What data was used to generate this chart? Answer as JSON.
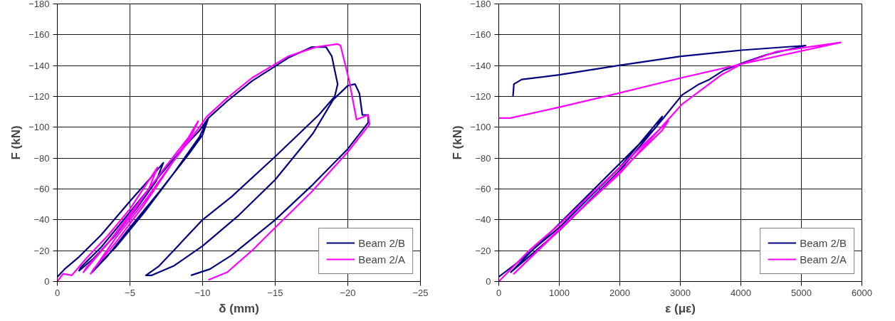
{
  "chart_data": [
    {
      "type": "line",
      "xlabel": "δ (mm)",
      "ylabel": "F (kN)",
      "xlim": [
        0,
        -25
      ],
      "ylim": [
        0,
        -180
      ],
      "xticks": [
        0,
        -5,
        -10,
        -15,
        -20,
        -25
      ],
      "yticks": [
        -180,
        -160,
        -140,
        -120,
        -100,
        -80,
        -60,
        -40,
        -20,
        0
      ],
      "grid": true,
      "legend": "bottom right",
      "series": [
        {
          "name": "Beam 2/B",
          "color": "#000080",
          "x": [
            0,
            -0.5,
            -1.5,
            -3,
            -5,
            -6.5,
            -7.3,
            -6.8,
            -5.5,
            -4,
            -2.5,
            -1.5,
            -1.6,
            -3,
            -5,
            -7,
            -8.5,
            -9.8,
            -10.4,
            -10.0,
            -9,
            -7,
            -5,
            -3.5,
            -2.4,
            -2.5,
            -4,
            -6,
            -8,
            -9.8,
            -10.4,
            -11.7,
            -13.4,
            -15.9,
            -17.5,
            -18.5,
            -18.9,
            -19.3,
            -19.1,
            -18,
            -15,
            -12,
            -10,
            -8,
            -7,
            -6.1,
            -6.5,
            -8,
            -10,
            -12.5,
            -15,
            -17.6,
            -19,
            -20,
            -20.5,
            -20.8,
            -21.0,
            -21.4,
            -21.4,
            -20,
            -17.5,
            -15,
            -12,
            -10.5,
            -9.2
          ],
          "values": [
            -3,
            -8,
            -16,
            -30,
            -52,
            -68,
            -77,
            -65,
            -48,
            -30,
            -15,
            -7,
            -9,
            -22,
            -45,
            -68,
            -85,
            -98,
            -106,
            -95,
            -82,
            -58,
            -35,
            -17,
            -6,
            -8,
            -22,
            -45,
            -70,
            -94,
            -106,
            -117,
            -130,
            -145,
            -152,
            -152,
            -146,
            -128,
            -120,
            -108,
            -81,
            -55,
            -40,
            -20,
            -10,
            -4,
            -4,
            -10,
            -23,
            -43,
            -66,
            -96,
            -118,
            -127,
            -128,
            -122,
            -108,
            -108,
            -103,
            -86,
            -62,
            -40,
            -17,
            -8,
            -4
          ]
        },
        {
          "name": "Beam 2/A",
          "color": "#ff00ff",
          "x": [
            0,
            -0.4,
            -1,
            -2,
            -3.5,
            -5,
            -6.9,
            -6.3,
            -5,
            -3.5,
            -1.8,
            -2,
            -3.5,
            -5.5,
            -7.5,
            -9,
            -9.7,
            -9.3,
            -8,
            -6,
            -4,
            -2.3,
            -2.5,
            -4,
            -6,
            -8,
            -9.7,
            -10.3,
            -11.7,
            -13.4,
            -15.9,
            -17.8,
            -19.3,
            -19.5,
            -20.1,
            -20.6,
            -21.4,
            -21.5,
            -20,
            -17.5,
            -15,
            -13.4,
            -11.7,
            -10.4
          ],
          "values": [
            0,
            -5,
            -4,
            -15,
            -30,
            -47,
            -74,
            -60,
            -42,
            -25,
            -6,
            -9,
            -25,
            -50,
            -75,
            -93,
            -104,
            -96,
            -78,
            -52,
            -28,
            -5,
            -8,
            -25,
            -50,
            -78,
            -99,
            -107,
            -119,
            -132,
            -146,
            -152,
            -154,
            -153,
            -130,
            -105,
            -108,
            -102,
            -84,
            -58,
            -35,
            -20,
            -6,
            -1
          ]
        }
      ]
    },
    {
      "type": "line",
      "xlabel": "ε (με)",
      "ylabel": "F (kN)",
      "xlim": [
        0,
        6000
      ],
      "ylim": [
        0,
        -180
      ],
      "xticks": [
        0,
        1000,
        2000,
        3000,
        4000,
        5000,
        6000
      ],
      "yticks": [
        -180,
        -160,
        -140,
        -120,
        -100,
        -80,
        -60,
        -40,
        -20,
        0
      ],
      "grid": true,
      "legend": "bottom right",
      "series": [
        {
          "name": "Beam 2/B",
          "color": "#000080",
          "x": [
            0,
            300,
            1000,
            2000,
            2700,
            2600,
            1500,
            600,
            200,
            1000,
            2000,
            2700,
            3030,
            3310,
            3480,
            3720,
            4050,
            4420,
            5070,
            4010,
            3010,
            1970,
            1000,
            380,
            250,
            235
          ],
          "values": [
            -3,
            -12,
            -35,
            -74,
            -107,
            -100,
            -57,
            -22,
            -6,
            -33,
            -72,
            -105,
            -121,
            -128,
            -131,
            -137,
            -142,
            -147,
            -153,
            -150,
            -146,
            -140,
            -134,
            -131,
            -128,
            -120
          ]
        },
        {
          "name": "Beam 2/A",
          "color": "#ff00ff",
          "x": [
            0,
            500,
            1000,
            2000,
            2800,
            2700,
            1500,
            700,
            250,
            1000,
            2000,
            2800,
            3030,
            3680,
            4010,
            4580,
            5650,
            4010,
            3010,
            1970,
            1000,
            190,
            0
          ],
          "values": [
            0,
            -20,
            -37,
            -74,
            -104,
            -98,
            -52,
            -22,
            -5,
            -34,
            -70,
            -105,
            -115,
            -134,
            -141,
            -149,
            -155,
            -141,
            -132,
            -122,
            -113,
            -106,
            -106
          ]
        }
      ]
    }
  ]
}
